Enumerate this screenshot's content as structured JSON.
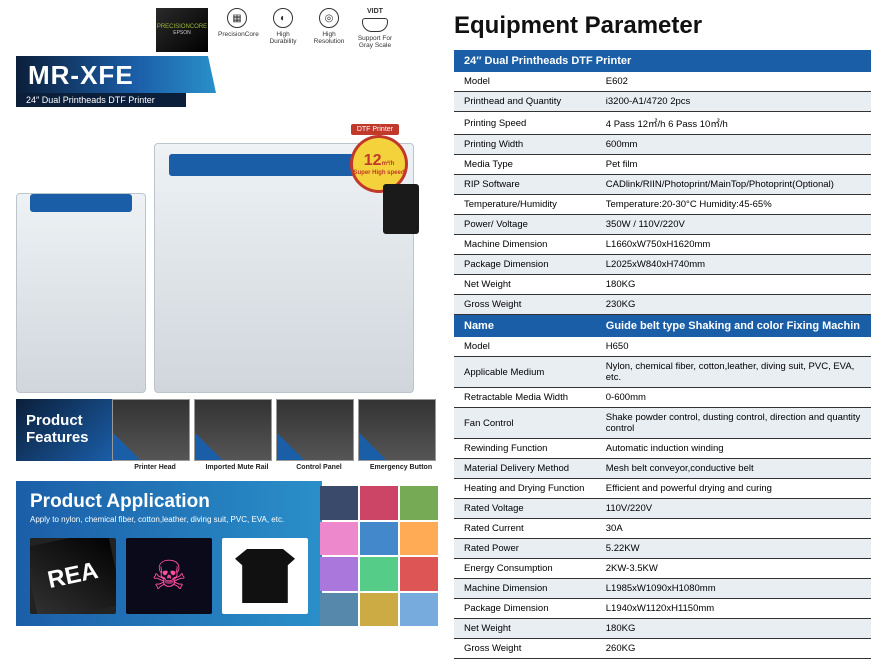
{
  "header": {
    "precision_core": "PRECISIONCORE",
    "precision_sub": "EPSON",
    "icons": [
      {
        "glyph": "▦",
        "label": "PrecisionCore"
      },
      {
        "glyph": "◐",
        "label": "High Durability"
      },
      {
        "glyph": "◎",
        "label": "High Resolution"
      },
      {
        "glyph": "vidt",
        "label_top": "VIDT",
        "label": "Support For Gray Scale"
      }
    ]
  },
  "model": {
    "name": "MR-XFE",
    "sub": "24″  Dual Printheads DTF Printer"
  },
  "hero": {
    "dtf_tag": "DTF Printer",
    "badge_num": "12",
    "badge_unit": "m²/h",
    "badge_sub": "Super High speed"
  },
  "features": {
    "title": "Product Features",
    "labels": [
      "Printer Head",
      "Imported Mute Rail",
      "Control Panel",
      "Emergency Button"
    ]
  },
  "application": {
    "title": "Product Application",
    "sub": "Apply to nylon, chemical fiber, cotton,leather, diving suit, PVC, EVA, etc."
  },
  "right": {
    "title": "Equipment Parameter",
    "section1_header": "24″  Dual Printheads DTF Printer",
    "section1_rows": [
      [
        "Model",
        "E602"
      ],
      [
        "Printhead and Quantity",
        "i3200-A1/4720  2pcs"
      ],
      [
        "Printing Speed",
        "4 Pass 12㎡/h      6 Pass 10㎡/h"
      ],
      [
        "Printing Width",
        "600mm"
      ],
      [
        "Media Type",
        "Pet film"
      ],
      [
        "RIP Software",
        "CADlink/RIIN/Photoprint/MainTop/Photoprint(Optional)"
      ],
      [
        "Temperature/Humidity",
        "Temperature:20-30°C  Humidity:45-65%"
      ],
      [
        "Power/ Voltage",
        "350W / 110V/220V"
      ],
      [
        "Machine Dimension",
        "L1660xW750xH1620mm"
      ],
      [
        "Package Dimension",
        "L2025xW840xH740mm"
      ],
      [
        "Net Weight",
        "180KG"
      ],
      [
        "Gross Weight",
        "230KG"
      ]
    ],
    "section2_header_left": "Name",
    "section2_header_right": "Guide belt type Shaking and color Fixing Machin",
    "section2_rows": [
      [
        "Model",
        "H650"
      ],
      [
        "Applicable Medium",
        "Nylon, chemical fiber, cotton,leather, diving suit, PVC, EVA, etc."
      ],
      [
        "Retractable Media Width",
        "0-600mm"
      ],
      [
        "Fan Control",
        "Shake powder control, dusting control, direction and quantity control"
      ],
      [
        "Rewinding Function",
        "Automatic induction winding"
      ],
      [
        "Material Delivery Method",
        "Mesh belt conveyor,conductive belt"
      ],
      [
        "Heating and Drying Function",
        "Efficient and powerful drying and curing"
      ],
      [
        "Rated Voltage",
        "110V/220V"
      ],
      [
        "Rated Current",
        "30A"
      ],
      [
        "Rated Power",
        "5.22KW"
      ],
      [
        "Energy Consumption",
        "2KW-3.5KW"
      ],
      [
        "Machine Dimension",
        "L1985xW1090xH1080mm"
      ],
      [
        "Package Dimension",
        "L1940xW1120xH1150mm"
      ],
      [
        "Net Weight",
        "180KG"
      ],
      [
        "Gross Weight",
        "260KG"
      ]
    ]
  }
}
